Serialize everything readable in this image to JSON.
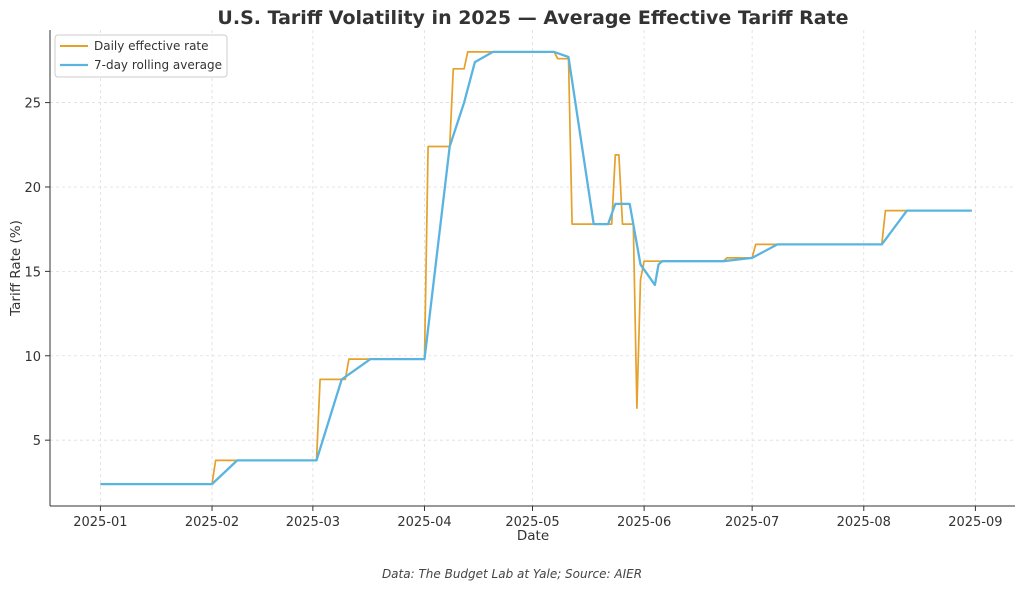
{
  "chart_data": {
    "type": "line",
    "title": "U.S. Tariff Volatility in 2025 — Average Effective Tariff Rate",
    "xlabel": "Date",
    "ylabel": "Tariff Rate (%)",
    "footnote": "Data: The Budget Lab at Yale; Source: AIER",
    "xlim": [
      "2024-12-18",
      "2025-09-12"
    ],
    "ylim": [
      1.1,
      29.3
    ],
    "x_ticks": [
      "2025-01",
      "2025-02",
      "2025-03",
      "2025-04",
      "2025-05",
      "2025-06",
      "2025-07",
      "2025-08",
      "2025-09"
    ],
    "y_ticks": [
      5,
      10,
      15,
      20,
      25
    ],
    "grid": true,
    "legend_placement": "top-left",
    "series": [
      {
        "name": "Daily effective rate",
        "color": "#E5A12A",
        "points": [
          [
            "2025-01-01",
            2.4
          ],
          [
            "2025-02-01",
            2.4
          ],
          [
            "2025-02-02",
            3.8
          ],
          [
            "2025-03-02",
            3.8
          ],
          [
            "2025-03-03",
            8.6
          ],
          [
            "2025-03-10",
            8.6
          ],
          [
            "2025-03-11",
            9.8
          ],
          [
            "2025-04-01",
            9.8
          ],
          [
            "2025-04-02",
            22.4
          ],
          [
            "2025-04-08",
            22.4
          ],
          [
            "2025-04-09",
            27.0
          ],
          [
            "2025-04-12",
            27.0
          ],
          [
            "2025-04-13",
            28.0
          ],
          [
            "2025-05-07",
            28.0
          ],
          [
            "2025-05-08",
            27.6
          ],
          [
            "2025-05-11",
            27.6
          ],
          [
            "2025-05-12",
            17.8
          ],
          [
            "2025-05-23",
            17.8
          ],
          [
            "2025-05-24",
            21.9
          ],
          [
            "2025-05-25",
            21.9
          ],
          [
            "2025-05-26",
            17.8
          ],
          [
            "2025-05-29",
            17.8
          ],
          [
            "2025-05-30",
            6.9
          ],
          [
            "2025-05-31",
            14.5
          ],
          [
            "2025-06-01",
            15.6
          ],
          [
            "2025-06-23",
            15.6
          ],
          [
            "2025-06-24",
            15.8
          ],
          [
            "2025-07-01",
            15.8
          ],
          [
            "2025-07-02",
            16.6
          ],
          [
            "2025-08-06",
            16.6
          ],
          [
            "2025-08-07",
            18.6
          ],
          [
            "2025-08-31",
            18.6
          ]
        ]
      },
      {
        "name": "7-day rolling average",
        "color": "#5AB4E0",
        "points": [
          [
            "2025-01-01",
            2.4
          ],
          [
            "2025-02-01",
            2.4
          ],
          [
            "2025-02-08",
            3.8
          ],
          [
            "2025-03-02",
            3.8
          ],
          [
            "2025-03-09",
            8.6
          ],
          [
            "2025-03-17",
            9.8
          ],
          [
            "2025-04-01",
            9.8
          ],
          [
            "2025-04-08",
            22.4
          ],
          [
            "2025-04-12",
            25.0
          ],
          [
            "2025-04-15",
            27.4
          ],
          [
            "2025-04-20",
            28.0
          ],
          [
            "2025-05-07",
            28.0
          ],
          [
            "2025-05-11",
            27.7
          ],
          [
            "2025-05-18",
            17.8
          ],
          [
            "2025-05-22",
            17.8
          ],
          [
            "2025-05-24",
            19.0
          ],
          [
            "2025-05-28",
            19.0
          ],
          [
            "2025-05-31",
            15.4
          ],
          [
            "2025-06-04",
            14.2
          ],
          [
            "2025-06-05",
            15.4
          ],
          [
            "2025-06-06",
            15.6
          ],
          [
            "2025-06-23",
            15.6
          ],
          [
            "2025-07-01",
            15.8
          ],
          [
            "2025-07-08",
            16.6
          ],
          [
            "2025-08-06",
            16.6
          ],
          [
            "2025-08-13",
            18.6
          ],
          [
            "2025-08-31",
            18.6
          ]
        ]
      }
    ]
  }
}
